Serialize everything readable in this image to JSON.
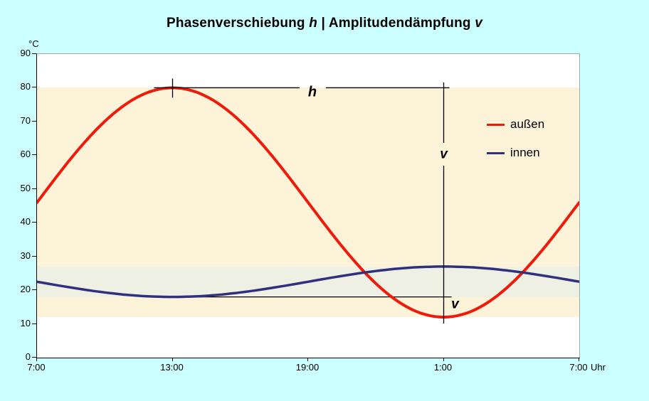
{
  "title": {
    "part1": "Phasenverschiebung ",
    "h_symbol": "h",
    "divider": " | ",
    "part2": "Amplitudendämpfung ",
    "v_symbol": "v"
  },
  "colors": {
    "background": "#CCFFFF",
    "plot_background": "#FFFFFF",
    "outer_band": "#FCF3D9",
    "inner_band": "#EDF0E2",
    "aussen_line": "#EE1A0A",
    "innen_line": "#30307E",
    "annotation": "#000000",
    "plot_border": "#A8A8A8"
  },
  "y_axis": {
    "unit": "°C",
    "min": 0,
    "max": 90,
    "step": 10,
    "tick_labels": [
      "0",
      "10",
      "20",
      "30",
      "40",
      "50",
      "60",
      "70",
      "80",
      "90"
    ]
  },
  "x_axis": {
    "labels": [
      {
        "hour": 7,
        "text": "7:00"
      },
      {
        "hour": 13,
        "text": "13:00"
      },
      {
        "hour": 19,
        "text": "19:00"
      },
      {
        "hour": 25,
        "text": "1:00"
      },
      {
        "hour": 31,
        "text": "7:00"
      }
    ],
    "suffix": "Uhr"
  },
  "legend": {
    "items": [
      {
        "label": "außen",
        "color": "#EE1A0A"
      },
      {
        "label": "innen",
        "color": "#30307E"
      }
    ]
  },
  "bands": [
    {
      "name": "outer-temperature-range",
      "from": 12,
      "to": 80,
      "color": "#FCF3D9"
    },
    {
      "name": "inner-temperature-range",
      "from": 18,
      "to": 27,
      "color": "#EDF0E2"
    }
  ],
  "annotations": {
    "phase_shift_line": {
      "label": "h",
      "temp": 80,
      "from_hour": 13,
      "to_hour": 25
    },
    "peak_marker": {
      "hour": 13,
      "temp": 80
    },
    "damping_line": {
      "upper_label": "v",
      "hour": 25,
      "from_temp": 80,
      "to_temp": 12
    },
    "inner_min_line": {
      "temp": 18,
      "from_hour": 12.6,
      "to_hour": 25.35
    },
    "lower_label": {
      "text": "v",
      "hour": 25.25,
      "temp": 15.8
    }
  },
  "chart_data": {
    "type": "line",
    "title": "Phasenverschiebung h | Amplitudendämpfung v",
    "ylabel": "°C",
    "xlabel": "Uhr",
    "ylim": [
      0,
      90
    ],
    "x_hours": [
      7,
      8,
      9,
      10,
      11,
      12,
      13,
      14,
      15,
      16,
      17,
      18,
      19,
      20,
      21,
      22,
      23,
      24,
      25,
      26,
      27,
      28,
      29,
      30,
      31
    ],
    "series": [
      {
        "name": "außen",
        "color": "#EE1A0A",
        "mean": 46,
        "amplitude": 34,
        "peak_hour": 13,
        "values": [
          46,
          54.8,
          63,
          70,
          75.4,
          78.8,
          80,
          78.8,
          75.4,
          70,
          63,
          54.8,
          46,
          37.2,
          29,
          22,
          16.6,
          13.2,
          12,
          13.2,
          16.6,
          22,
          29,
          37.2,
          46
        ]
      },
      {
        "name": "innen",
        "color": "#30307E",
        "mean": 22.5,
        "amplitude": 4.5,
        "peak_hour": 25,
        "values": [
          22.5,
          21.3,
          20.3,
          19.3,
          18.6,
          18.2,
          18,
          18.2,
          18.6,
          19.3,
          20.3,
          21.3,
          22.5,
          23.7,
          24.8,
          25.7,
          26.4,
          26.8,
          27,
          26.8,
          26.4,
          25.7,
          24.8,
          23.7,
          22.5
        ]
      }
    ],
    "legend_position": "upper right inside plot",
    "grid": false
  }
}
